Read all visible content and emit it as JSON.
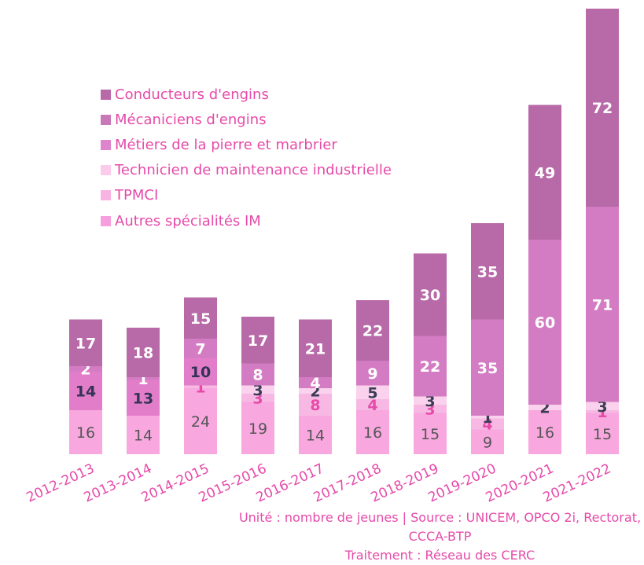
{
  "chart_data": {
    "type": "bar",
    "stacked": true,
    "categories": [
      "2012-2013",
      "2013-2014",
      "2014-2015",
      "2015-2016",
      "2016-2017",
      "2017-2018",
      "2018-2019",
      "2019-2020",
      "2020-2021",
      "2021-2022"
    ],
    "series": [
      {
        "name": "Autres spécialités IM",
        "color": "#f8a8df",
        "label_color": "#555555",
        "label_weight": "normal",
        "values": [
          16,
          14,
          24,
          19,
          14,
          16,
          15,
          9,
          16,
          15
        ]
      },
      {
        "name": "TPMCI",
        "color": "#f7b9e3",
        "label_color": "#e64aa9",
        "label_weight": "bold",
        "values": [
          0,
          0,
          1,
          3,
          8,
          4,
          3,
          4,
          0,
          1
        ]
      },
      {
        "name": "Technicien de maintenance industrielle",
        "color": "#fbd2ee",
        "label_color": "#3a3d55",
        "label_weight": "bold",
        "values": [
          0,
          0,
          0,
          3,
          2,
          5,
          3,
          1,
          2,
          3
        ]
      },
      {
        "name": "Métiers de la pierre et marbrier",
        "color": "#e27ec9",
        "label_color": "#333355",
        "label_weight": "bold",
        "values": [
          14,
          13,
          10,
          0,
          0,
          0,
          0,
          0,
          0,
          0
        ]
      },
      {
        "name": "Mécaniciens d'engins",
        "color": "#d47cc3",
        "label_color": "#ffffff",
        "label_weight": "bold",
        "values": [
          2,
          1,
          7,
          8,
          4,
          9,
          22,
          35,
          60,
          71
        ]
      },
      {
        "name": "Conducteurs d'engins",
        "color": "#b869a8",
        "label_color": "#ffffff",
        "label_weight": "bold",
        "values": [
          17,
          18,
          15,
          17,
          21,
          22,
          30,
          35,
          49,
          72
        ]
      }
    ],
    "legend_order": [
      "Conducteurs d'engins",
      "Mécaniciens d'engins",
      "Métiers de la pierre et marbrier",
      "Technicien de maintenance industrielle",
      "TPMCI",
      "Autres spécialités IM"
    ],
    "legend_colors": [
      "#b869a8",
      "#c978b8",
      "#dd84cc",
      "#fbcbec",
      "#f9b3e3",
      "#f69ede"
    ],
    "legend_position": "top-left",
    "xlabel_color": "#e64aa9",
    "grid": false
  },
  "footer": {
    "line1": "Unité : nombre de jeunes | Source : UNICEM, OPCO 2i, Rectorat, CCCA-BTP",
    "line2": "Traitement : Réseau des CERC"
  }
}
